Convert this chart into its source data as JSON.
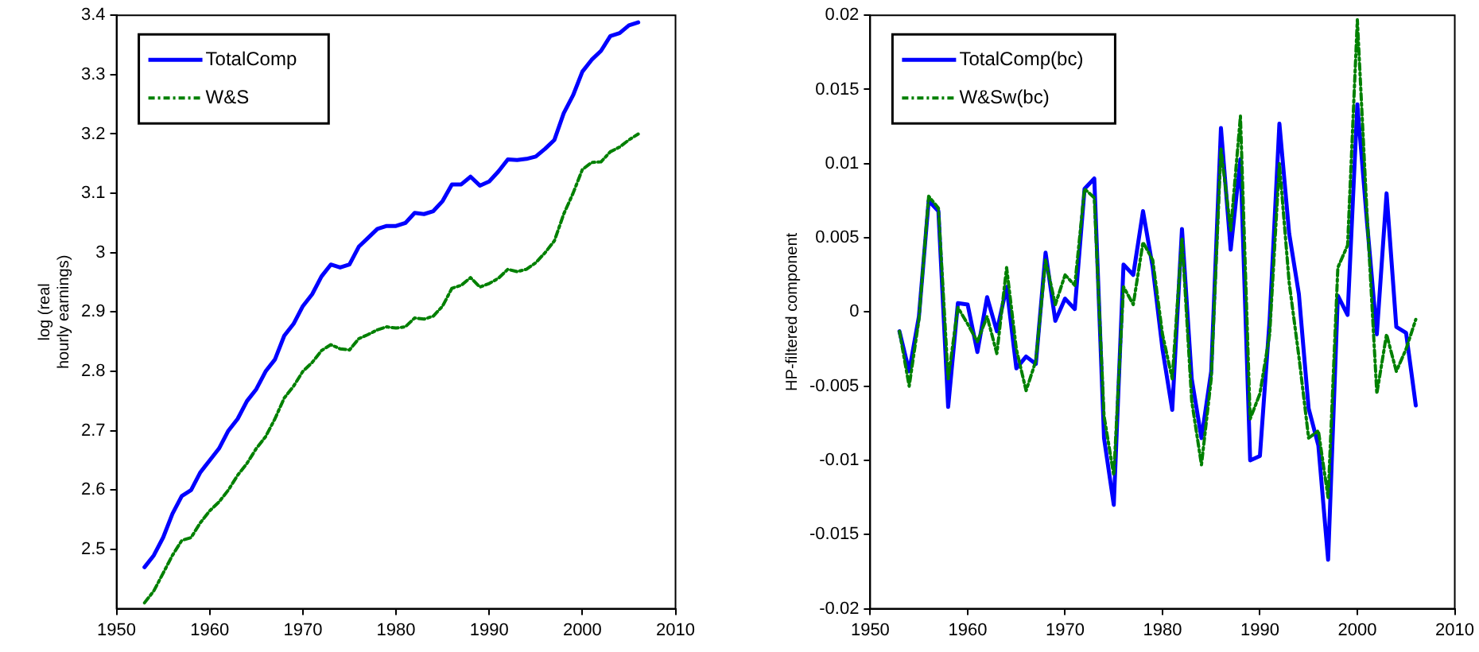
{
  "chart_data": [
    {
      "type": "line",
      "ylabel": "log (real\nhourly earnings)",
      "x": [
        1953,
        1954,
        1955,
        1956,
        1957,
        1958,
        1959,
        1960,
        1961,
        1962,
        1963,
        1964,
        1965,
        1966,
        1967,
        1968,
        1969,
        1970,
        1971,
        1972,
        1973,
        1974,
        1975,
        1976,
        1977,
        1978,
        1979,
        1980,
        1981,
        1982,
        1983,
        1984,
        1985,
        1986,
        1987,
        1988,
        1989,
        1990,
        1991,
        1992,
        1993,
        1994,
        1995,
        1996,
        1997,
        1998,
        1999,
        2000,
        2001,
        2002,
        2003,
        2004,
        2005,
        2006
      ],
      "series": [
        {
          "name": "TotalComp",
          "color": "#0000ff",
          "line_style": "solid",
          "values": [
            2.47,
            2.49,
            2.52,
            2.56,
            2.59,
            2.6,
            2.63,
            2.65,
            2.67,
            2.7,
            2.72,
            2.75,
            2.77,
            2.8,
            2.82,
            2.86,
            2.88,
            2.91,
            2.93,
            2.96,
            2.98,
            2.975,
            2.98,
            3.01,
            3.025,
            3.04,
            3.045,
            3.045,
            3.05,
            3.067,
            3.065,
            3.07,
            3.087,
            3.115,
            3.115,
            3.128,
            3.113,
            3.12,
            3.137,
            3.157,
            3.156,
            3.158,
            3.162,
            3.175,
            3.19,
            3.235,
            3.265,
            3.305,
            3.325,
            3.34,
            3.365,
            3.37,
            3.383,
            3.388
          ]
        },
        {
          "name": "W&S",
          "color": "#008000",
          "line_style": "dashdot",
          "values": [
            2.41,
            2.43,
            2.46,
            2.49,
            2.515,
            2.52,
            2.545,
            2.565,
            2.58,
            2.6,
            2.625,
            2.645,
            2.67,
            2.69,
            2.72,
            2.755,
            2.775,
            2.8,
            2.815,
            2.835,
            2.845,
            2.838,
            2.836,
            2.855,
            2.862,
            2.87,
            2.875,
            2.873,
            2.875,
            2.89,
            2.888,
            2.893,
            2.91,
            2.94,
            2.945,
            2.958,
            2.942,
            2.948,
            2.957,
            2.972,
            2.968,
            2.972,
            2.983,
            3.0,
            3.02,
            3.065,
            3.1,
            3.14,
            3.152,
            3.153,
            3.17,
            3.178,
            3.19,
            3.2
          ]
        }
      ],
      "xlim": [
        1950,
        2010
      ],
      "xticks": [
        1950,
        1960,
        1970,
        1980,
        1990,
        2000,
        2010
      ],
      "ylim": [
        2.4,
        3.4
      ],
      "yticks": [
        2.5,
        2.6,
        2.7,
        2.8,
        2.9,
        3,
        3.1,
        3.2,
        3.3,
        3.4
      ],
      "grid": false,
      "legend": "top left",
      "marker": "none"
    },
    {
      "type": "line",
      "ylabel": "HP-filtered component",
      "x": [
        1953,
        1954,
        1955,
        1956,
        1957,
        1958,
        1959,
        1960,
        1961,
        1962,
        1963,
        1964,
        1965,
        1966,
        1967,
        1968,
        1969,
        1970,
        1971,
        1972,
        1973,
        1974,
        1975,
        1976,
        1977,
        1978,
        1979,
        1980,
        1981,
        1982,
        1983,
        1984,
        1985,
        1986,
        1987,
        1988,
        1989,
        1990,
        1991,
        1992,
        1993,
        1994,
        1995,
        1996,
        1997,
        1998,
        1999,
        2000,
        2001,
        2002,
        2003,
        2004,
        2005,
        2006
      ],
      "series": [
        {
          "name": "TotalComp(bc)",
          "color": "#0000ff",
          "line_style": "solid",
          "values": [
            -0.0013,
            -0.004,
            -0.0003,
            0.0075,
            0.0068,
            -0.0064,
            0.0006,
            0.0005,
            -0.0027,
            0.001,
            -0.0013,
            0.0017,
            -0.0038,
            -0.003,
            -0.0035,
            0.004,
            -0.0006,
            0.0009,
            0.0002,
            0.0083,
            0.009,
            -0.0085,
            -0.013,
            0.0032,
            0.0025,
            0.0068,
            0.003,
            -0.0025,
            -0.0066,
            0.0056,
            -0.0045,
            -0.0085,
            -0.004,
            0.0124,
            0.0042,
            0.0103,
            -0.01,
            -0.0097,
            -0.0005,
            0.0127,
            0.0053,
            0.0012,
            -0.0065,
            -0.009,
            -0.0167,
            0.0011,
            -0.0002,
            0.014,
            0.006,
            -0.0015,
            0.008,
            -0.001,
            -0.0014,
            -0.0063
          ]
        },
        {
          "name": "W&Sw(bc)",
          "color": "#008000",
          "line_style": "dashdot",
          "values": [
            -0.0013,
            -0.005,
            -0.0005,
            0.0078,
            0.007,
            -0.0045,
            0.0003,
            -0.0008,
            -0.002,
            -0.0003,
            -0.0028,
            0.003,
            -0.0025,
            -0.0053,
            -0.0033,
            0.0035,
            0.0005,
            0.0025,
            0.0018,
            0.0083,
            0.0077,
            -0.007,
            -0.011,
            0.0017,
            0.0005,
            0.0047,
            0.0035,
            -0.0015,
            -0.0045,
            0.005,
            -0.006,
            -0.0103,
            -0.0045,
            0.011,
            0.0055,
            0.0132,
            -0.0072,
            -0.0055,
            -0.0015,
            0.01,
            0.002,
            -0.003,
            -0.0085,
            -0.008,
            -0.0125,
            0.003,
            0.0045,
            0.0197,
            0.0065,
            -0.0055,
            -0.0015,
            -0.004,
            -0.0025,
            -0.0005
          ]
        }
      ],
      "xlim": [
        1950,
        2010
      ],
      "xticks": [
        1950,
        1960,
        1970,
        1980,
        1990,
        2000,
        2010
      ],
      "ylim": [
        -0.02,
        0.02
      ],
      "yticks": [
        -0.02,
        -0.015,
        -0.01,
        -0.005,
        0,
        0.005,
        0.01,
        0.015,
        0.02
      ],
      "grid": false,
      "legend": "top left",
      "marker": "none"
    }
  ]
}
